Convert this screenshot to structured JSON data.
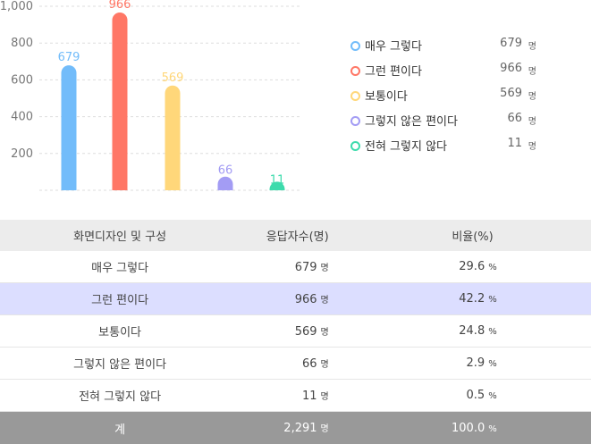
{
  "chart_data": {
    "type": "bar",
    "categories": [
      "매우 그렇다",
      "그런 편이다",
      "보통이다",
      "그렇지 않은 편이다",
      "전혀 그렇지 않다"
    ],
    "values": [
      679,
      966,
      569,
      66,
      11
    ],
    "colors": [
      "#72bcfa",
      "#ff7766",
      "#ffd77a",
      "#a39cf4",
      "#3ddbac"
    ],
    "ylim": [
      0,
      1000
    ],
    "yticks": [
      "1,000",
      "800",
      "600",
      "400",
      "200"
    ],
    "grid": true,
    "legend_position": "right",
    "value_unit": "명"
  },
  "table": {
    "headers": [
      "화면디자인 및 구성",
      "응답자수(명)",
      "비율(%)"
    ],
    "rows": [
      {
        "label": "매우 그렇다",
        "count": "679",
        "ratio": "29.6"
      },
      {
        "label": "그런 편이다",
        "count": "966",
        "ratio": "42.2"
      },
      {
        "label": "보통이다",
        "count": "569",
        "ratio": "24.8"
      },
      {
        "label": "그렇지 않은 편이다",
        "count": "66",
        "ratio": "2.9"
      },
      {
        "label": "전혀 그렇지 않다",
        "count": "11",
        "ratio": "0.5"
      }
    ],
    "total": {
      "label": "계",
      "count": "2,291",
      "ratio": "100.0"
    },
    "count_unit": "명",
    "ratio_unit": "%",
    "highlight_row": 1,
    "highlight_color": "#dcdeff",
    "total_color": "#999999"
  }
}
